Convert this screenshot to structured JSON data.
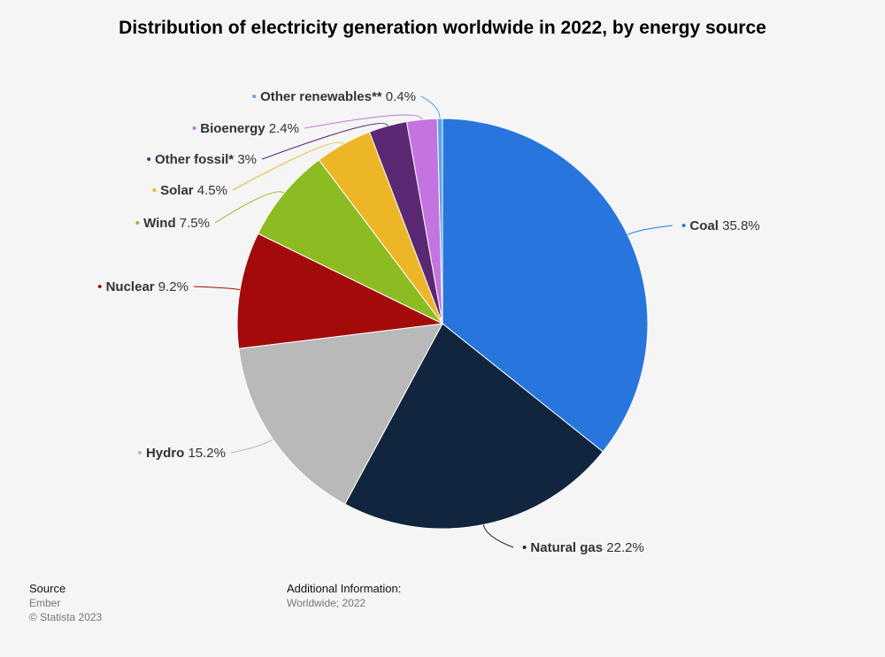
{
  "chart_data": {
    "type": "pie",
    "title": "Distribution of electricity generation worldwide in 2022, by energy source",
    "slices": [
      {
        "name": "Coal",
        "value": 35.8,
        "value_label": "35.8%",
        "color": "#2876dd"
      },
      {
        "name": "Natural gas",
        "value": 22.2,
        "value_label": "22.2%",
        "color": "#11263e"
      },
      {
        "name": "Hydro",
        "value": 15.2,
        "value_label": "15.2%",
        "color": "#b9b9b9"
      },
      {
        "name": "Nuclear",
        "value": 9.2,
        "value_label": "9.2%",
        "color": "#a30b0b"
      },
      {
        "name": "Wind",
        "value": 7.5,
        "value_label": "7.5%",
        "color": "#8cbc22"
      },
      {
        "name": "Solar",
        "value": 4.5,
        "value_label": "4.5%",
        "color": "#ecb627"
      },
      {
        "name": "Other fossil*",
        "value": 3.0,
        "value_label": "3%",
        "color": "#5b2873"
      },
      {
        "name": "Bioenergy",
        "value": 2.4,
        "value_label": "2.4%",
        "color": "#c474e0"
      },
      {
        "name": "Other renewables**",
        "value": 0.4,
        "value_label": "0.4%",
        "color": "#5ba3e6"
      }
    ]
  },
  "footer": {
    "source_heading": "Source",
    "source_name": "Ember",
    "copyright": "© Statista 2023",
    "additional_heading": "Additional Information:",
    "additional_text": "Worldwide; 2022"
  }
}
